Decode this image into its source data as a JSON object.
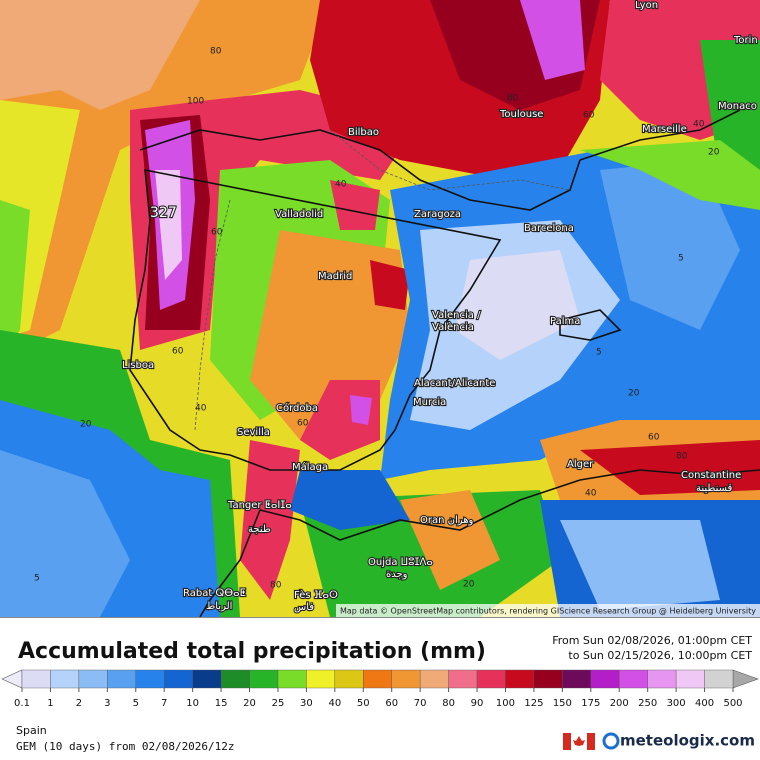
{
  "header": {
    "title": "Accumulated total precipitation (mm)",
    "from": "From Sun 02/08/2026, 01:00pm CET",
    "to": "to Sun 02/15/2026, 10:00pm CET"
  },
  "colorbar": {
    "ticks": [
      0.1,
      1,
      2,
      3,
      5,
      7,
      10,
      15,
      20,
      25,
      30,
      40,
      50,
      60,
      70,
      80,
      90,
      100,
      125,
      150,
      175,
      200,
      250,
      300,
      400,
      500
    ],
    "colors": [
      "#dcdcf5",
      "#b4d2fa",
      "#8cbcf5",
      "#5aa0f0",
      "#2882eb",
      "#1464d2",
      "#0a3c8c",
      "#1e8c28",
      "#28b428",
      "#78dc28",
      "#f0f028",
      "#dcc814",
      "#f07814",
      "#f09632",
      "#f0aa78",
      "#f06e8c",
      "#e6325a",
      "#c80a1e",
      "#96001e",
      "#6e0a5a",
      "#b41ec8",
      "#d250e6",
      "#e696f0",
      "#f0c8f5",
      "#d2d2d2"
    ]
  },
  "map": {
    "cities": [
      "Lyon",
      "Torin",
      "Monaco",
      "Marseille",
      "Toulouse",
      "Bilbao",
      "Valladolid",
      "Zaragoza",
      "Barcelona",
      "Madrid",
      "Valencia /",
      "València",
      "Palma",
      "Lisboa",
      "Alacant/Alicante",
      "Murcia",
      "Córdoba",
      "Sevilla",
      "Málaga",
      "Alger",
      "Constantine",
      "قسنطينة",
      "Tanger ⵟⴰⵏⵊⴰ",
      "طنجة",
      "Oran وهران",
      "Oujda ⵡⵓⵊⴷⴰ",
      "وجدة",
      "Rabat ⵕⴱⴰⵟ",
      "الرباط",
      "Fès ⴼⴰⵙ",
      "فاس"
    ],
    "contour_labels": [
      80,
      100,
      80,
      60,
      40,
      20,
      327,
      60,
      40,
      60,
      20,
      40,
      60,
      5,
      5,
      20,
      60,
      80,
      40,
      20,
      5,
      80
    ],
    "attribution": "Map data © OpenStreetMap contributors, rendering GIScience Research Group @ Heidelberg University"
  },
  "footer": {
    "region": "Spain",
    "model": "GEM (10 days) from 02/08/2026/12z",
    "brand": "meteologix.com"
  }
}
